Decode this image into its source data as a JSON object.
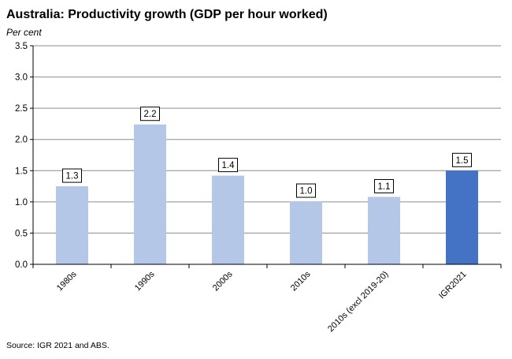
{
  "chart_data": {
    "type": "bar",
    "title": "Australia: Productivity growth (GDP per hour worked)",
    "ylabel": "Per cent",
    "xlabel": "",
    "categories": [
      "1980s",
      "1990s",
      "2000s",
      "2010s",
      "2010s (excl 2019-20)",
      "IGR2021"
    ],
    "values": [
      1.25,
      2.24,
      1.42,
      1.01,
      1.08,
      1.5
    ],
    "data_labels": [
      "1.3",
      "2.2",
      "1.4",
      "1.0",
      "1.1",
      "1.5"
    ],
    "ylim": [
      0,
      3.5
    ],
    "yticks": [
      "0.0",
      "0.5",
      "1.0",
      "1.5",
      "2.0",
      "2.5",
      "3.0",
      "3.5"
    ],
    "grid": true,
    "legend": "none",
    "bar_colors": [
      "#b4c7e7",
      "#b4c7e7",
      "#b4c7e7",
      "#b4c7e7",
      "#b4c7e7",
      "#4472c4"
    ],
    "source": "Source: IGR 2021 and ABS."
  }
}
